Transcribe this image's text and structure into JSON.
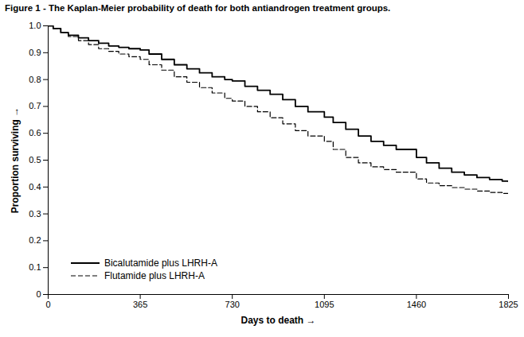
{
  "chart_data": {
    "type": "line",
    "title": "Figure 1 - The Kaplan-Meier probability of death for both antiandrogen treatment groups.",
    "xlabel": "Days to death",
    "ylabel": "Proportion surviving",
    "x": [
      0,
      20,
      50,
      80,
      120,
      160,
      200,
      240,
      280,
      320,
      365,
      400,
      450,
      500,
      550,
      600,
      650,
      700,
      730,
      780,
      830,
      880,
      930,
      980,
      1030,
      1095,
      1130,
      1180,
      1230,
      1280,
      1330,
      1380,
      1460,
      1500,
      1550,
      1600,
      1650,
      1700,
      1750,
      1800,
      1825
    ],
    "series": [
      {
        "name": "Bicalutamide plus LHRH-A",
        "color": "#000000",
        "line_style": "solid",
        "values": [
          1.0,
          0.99,
          0.975,
          0.965,
          0.955,
          0.945,
          0.935,
          0.925,
          0.92,
          0.915,
          0.91,
          0.895,
          0.875,
          0.855,
          0.84,
          0.825,
          0.81,
          0.8,
          0.795,
          0.775,
          0.76,
          0.745,
          0.725,
          0.7,
          0.68,
          0.66,
          0.64,
          0.615,
          0.59,
          0.57,
          0.555,
          0.54,
          0.51,
          0.49,
          0.47,
          0.455,
          0.445,
          0.435,
          0.428,
          0.422,
          0.42
        ]
      },
      {
        "name": "Flutamide plus LHRH-A",
        "color": "#000000",
        "line_style": "dashed",
        "values": [
          1.0,
          0.99,
          0.975,
          0.96,
          0.945,
          0.93,
          0.915,
          0.905,
          0.895,
          0.885,
          0.875,
          0.855,
          0.835,
          0.81,
          0.79,
          0.77,
          0.75,
          0.73,
          0.72,
          0.7,
          0.68,
          0.658,
          0.635,
          0.61,
          0.59,
          0.57,
          0.54,
          0.51,
          0.49,
          0.475,
          0.465,
          0.455,
          0.43,
          0.415,
          0.405,
          0.398,
          0.392,
          0.385,
          0.38,
          0.376,
          0.374
        ]
      }
    ],
    "xlim": [
      0,
      1825
    ],
    "ylim": [
      0,
      1.0
    ],
    "xticks": [
      0,
      365,
      730,
      1095,
      1460,
      1825
    ],
    "yticks": [
      0,
      0.1,
      0.2,
      0.3,
      0.4,
      0.5,
      0.6,
      0.7,
      0.8,
      0.9,
      {
        "value": 1.0,
        "label": "1.0"
      }
    ],
    "grid": false,
    "legend": "lower left"
  }
}
